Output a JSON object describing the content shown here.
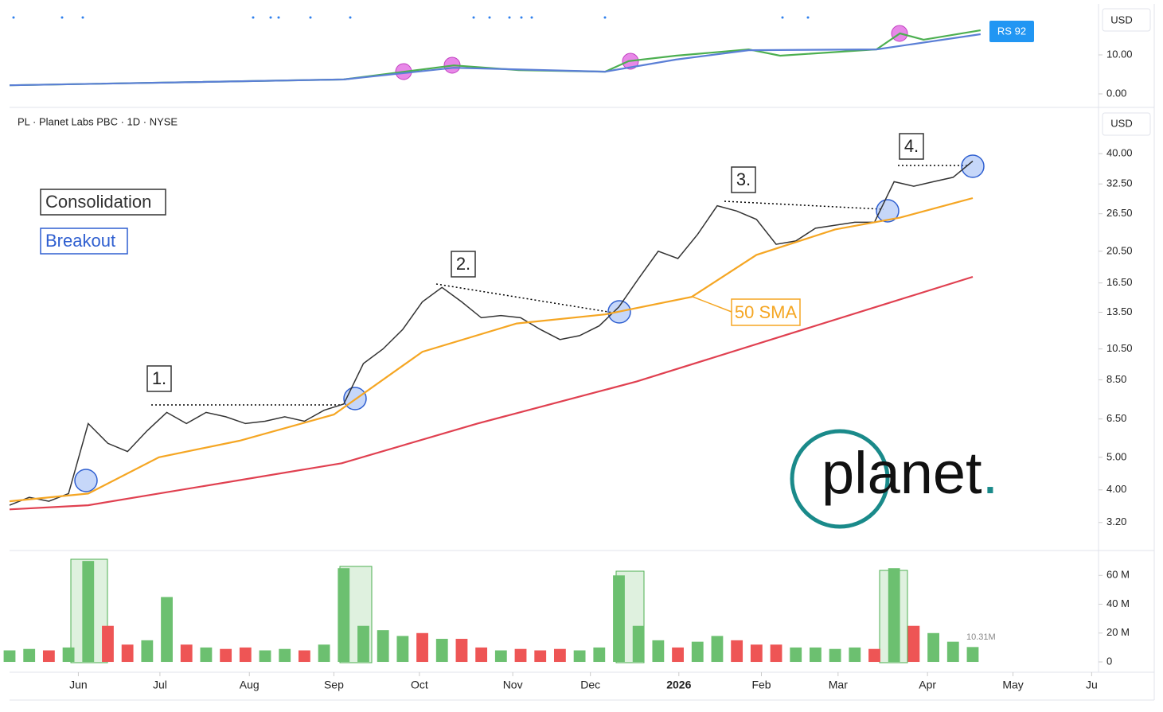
{
  "chart_data": [
    {
      "type": "line",
      "currency": "USD",
      "tag": "RS 92",
      "xlim": [
        0,
        55.4
      ],
      "ylim": [
        -2.45,
        23.06
      ],
      "yticks": [
        {
          "value": 10,
          "label": "10.00"
        },
        {
          "value": 0,
          "label": "0.00"
        }
      ],
      "series": [
        {
          "color": "#4caf50",
          "x": [
            0,
            17,
            20.1,
            22.6,
            25.9,
            30.3,
            31.5,
            33.9,
            37.6,
            39.2,
            44.1,
            45.3,
            46.5,
            49.4
          ],
          "values": [
            2.2,
            3.7,
            5.7,
            7.3,
            6.1,
            5.7,
            8.4,
            9.8,
            11.4,
            9.8,
            11.4,
            15.5,
            13.9,
            16.3
          ]
        },
        {
          "color": "#5b7fd6",
          "x": [
            0,
            17,
            22.6,
            30.3,
            33.9,
            37.6,
            44.1,
            49.4
          ],
          "values": [
            2.2,
            3.7,
            6.7,
            5.7,
            8.8,
            11.2,
            11.4,
            15.3
          ]
        }
      ]
    },
    {
      "type": "line",
      "currency": "USD",
      "title": "PL · Planet Labs PBC · 1D · NYSE",
      "log_scale": true,
      "annotations": [
        "Consolidation",
        "Breakout",
        "1.",
        "2.",
        "3.",
        "4.",
        "50 SMA"
      ],
      "logo": {
        "word": "planet",
        "dot": "."
      },
      "xlim": [
        0,
        55.4
      ],
      "ylim": [
        2.67,
        54.3
      ],
      "yticks": [
        {
          "value": 40,
          "label": "40.00"
        },
        {
          "value": 32.5,
          "label": "32.50"
        },
        {
          "value": 26.5,
          "label": "26.50"
        },
        {
          "value": 20.5,
          "label": "20.50"
        },
        {
          "value": 16.5,
          "label": "16.50"
        },
        {
          "value": 13.5,
          "label": "13.50"
        },
        {
          "value": 10.5,
          "label": "10.50"
        },
        {
          "value": 8.5,
          "label": "8.50"
        },
        {
          "value": 6.5,
          "label": "6.50"
        },
        {
          "value": 5,
          "label": "5.00"
        },
        {
          "value": 4,
          "label": "4.00"
        },
        {
          "value": 3.2,
          "label": "3.20"
        }
      ],
      "x": [
        0,
        1,
        2,
        3,
        4,
        5,
        6,
        7,
        8,
        9,
        10,
        11,
        12,
        13,
        14,
        15,
        16,
        17,
        18,
        19,
        20,
        21,
        22,
        23,
        24,
        25,
        26,
        27,
        28,
        29,
        30,
        31,
        32,
        33,
        34,
        35,
        36,
        37,
        38,
        39,
        40,
        41,
        42,
        43,
        44,
        45,
        46,
        47,
        48,
        49
      ],
      "series": [
        {
          "color": "#333333",
          "values": [
            3.6,
            3.8,
            3.7,
            3.9,
            6.3,
            5.5,
            5.2,
            6.0,
            6.8,
            6.3,
            6.8,
            6.6,
            6.3,
            6.4,
            6.6,
            6.4,
            6.9,
            7.2,
            9.5,
            10.5,
            12.0,
            14.5,
            16.0,
            14.5,
            13.0,
            13.2,
            13.0,
            12.0,
            11.2,
            11.5,
            12.3,
            14.0,
            17.0,
            20.5,
            19.5,
            23.0,
            28.0,
            27.0,
            25.5,
            21.5,
            22.0,
            24.0,
            24.5,
            25.0,
            25.0,
            33.0,
            32.0,
            33.0,
            34.0,
            38.0
          ]
        },
        {
          "color": "#f5a623",
          "x": [
            0,
            4,
            7.6,
            11.7,
            16.5,
            21,
            25.8,
            30.3,
            34.7,
            38,
            42,
            45.3,
            49
          ],
          "values": [
            3.7,
            3.9,
            5.0,
            5.6,
            6.7,
            10.3,
            12.5,
            13.3,
            15.0,
            20.0,
            23.8,
            25.8,
            29.5
          ]
        },
        {
          "color": "#e04050",
          "x": [
            0,
            4,
            16.9,
            23.8,
            31.9,
            40,
            49
          ],
          "values": [
            3.5,
            3.6,
            4.8,
            6.3,
            8.4,
            11.8,
            17.2
          ]
        }
      ]
    },
    {
      "type": "bar",
      "xlim": [
        0,
        55.4
      ],
      "ylim": [
        -4.4,
        75.6
      ],
      "yticks": [
        {
          "value": 60,
          "label": "60 M"
        },
        {
          "value": 40,
          "label": "40 M"
        },
        {
          "value": 20,
          "label": "20 M"
        },
        0
      ],
      "xticks": [
        {
          "value": 3.5,
          "label": "Jun"
        },
        {
          "value": 7.65,
          "label": "Jul"
        },
        {
          "value": 12.2,
          "label": "Aug"
        },
        {
          "value": 16.5,
          "label": "Sep"
        },
        {
          "value": 20.85,
          "label": "Oct"
        },
        {
          "value": 25.6,
          "label": "Nov"
        },
        {
          "value": 29.55,
          "label": "Dec"
        },
        {
          "value": 34.05,
          "label": "2026"
        },
        {
          "value": 38.25,
          "label": "Feb"
        },
        {
          "value": 42.15,
          "label": "Mar"
        },
        {
          "value": 46.7,
          "label": "Apr"
        },
        {
          "value": 51.05,
          "label": "May"
        },
        {
          "value": 55.05,
          "label": "Ju"
        }
      ],
      "x": [
        0,
        1,
        2,
        3,
        4,
        5,
        6,
        7,
        8,
        9,
        10,
        11,
        12,
        13,
        14,
        15,
        16,
        17,
        18,
        19,
        20,
        21,
        22,
        23,
        24,
        25,
        26,
        27,
        28,
        29,
        30,
        31,
        32,
        33,
        34,
        35,
        36,
        37,
        38,
        39,
        40,
        41,
        42,
        43,
        44,
        45,
        46,
        47,
        48,
        49
      ],
      "series": [
        {
          "color": "#6cc070",
          "values": [
            8,
            9,
            null,
            10,
            70,
            null,
            null,
            15,
            45,
            null,
            10,
            null,
            null,
            8,
            9,
            null,
            12,
            65,
            25,
            22,
            18,
            null,
            16,
            null,
            null,
            8,
            null,
            null,
            null,
            8,
            10,
            60,
            25,
            15,
            null,
            14,
            18,
            null,
            null,
            null,
            10,
            10,
            9,
            10,
            null,
            65,
            null,
            20,
            14,
            10.31
          ],
          "value_labels": [
            null,
            null,
            null,
            null,
            null,
            null,
            null,
            null,
            null,
            null,
            null,
            null,
            null,
            null,
            null,
            null,
            null,
            null,
            null,
            null,
            null,
            null,
            null,
            null,
            null,
            null,
            null,
            null,
            null,
            null,
            null,
            null,
            null,
            null,
            null,
            null,
            null,
            null,
            null,
            null,
            null,
            null,
            null,
            null,
            null,
            null,
            null,
            null,
            null,
            "10.31M"
          ]
        },
        {
          "color": "#ee5555",
          "values": [
            null,
            null,
            8,
            null,
            null,
            25,
            12,
            null,
            null,
            12,
            null,
            9,
            10,
            null,
            null,
            8,
            null,
            null,
            null,
            null,
            null,
            20,
            null,
            16,
            10,
            null,
            9,
            8,
            9,
            null,
            null,
            null,
            null,
            null,
            10,
            null,
            null,
            15,
            12,
            12,
            null,
            null,
            null,
            null,
            9,
            null,
            25,
            null,
            null,
            null
          ]
        }
      ]
    }
  ]
}
